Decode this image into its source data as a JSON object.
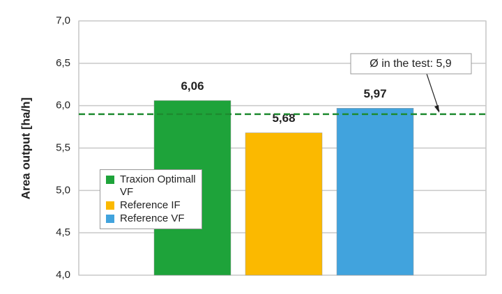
{
  "chart_data": {
    "type": "bar",
    "y_label": "Area output [ha/h]",
    "categories": [
      "Traxion Optimall VF",
      "Reference IF",
      "Reference VF"
    ],
    "values": [
      6.06,
      5.68,
      5.97
    ],
    "value_labels": [
      "6,06",
      "5,68",
      "5,97"
    ],
    "colors": [
      "#1ea33a",
      "#fbb900",
      "#41a3dd"
    ],
    "ylim": [
      4.0,
      7.0
    ],
    "yticks": [
      {
        "value": 4.0,
        "label": "4,0"
      },
      {
        "value": 4.5,
        "label": "4,5"
      },
      {
        "value": 5.0,
        "label": "5,0"
      },
      {
        "value": 5.5,
        "label": "5,5"
      },
      {
        "value": 6.0,
        "label": "6,0"
      },
      {
        "value": 6.5,
        "label": "6,5"
      },
      {
        "value": 7.0,
        "label": "7,0"
      }
    ],
    "grid": true,
    "average": 5.9,
    "average_label": "Ø in the test: 5,9",
    "average_color": "#1e8a30"
  }
}
